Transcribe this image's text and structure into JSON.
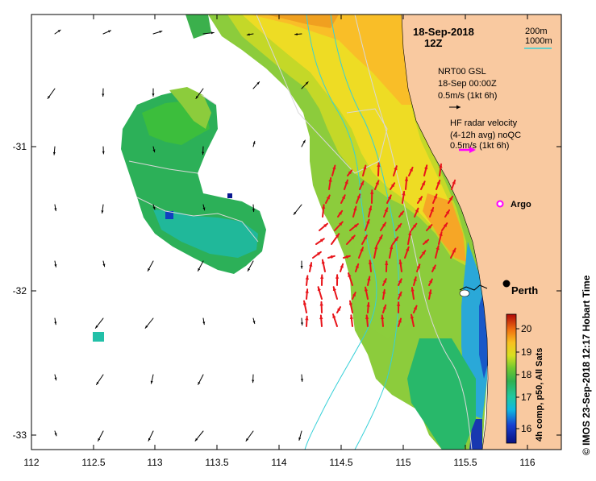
{
  "map": {
    "title_date": "18-Sep-2018",
    "title_time": "12Z",
    "depth_labels": [
      "200m",
      "1000m"
    ],
    "depth_colors": {
      "d200": "#cccccc",
      "d1000": "#36d0d8"
    },
    "gsl_title": "NRT00 GSL",
    "gsl_date": "18-Sep 00:00Z",
    "gsl_scale": "0.5m/s (1kt 6h)",
    "hf_title": "HF radar velocity",
    "hf_subtitle": "(4-12h avg) noQC",
    "hf_scale": "0.5m/s (1kt 6h)",
    "argo_label": "Argo",
    "city_label": "Perth",
    "side_label": "© IMOS 23-Sep-2018 12:17 Hobart Time",
    "colorbar_label": "4h comp, p50, All Sats",
    "colorbar_ticks": [
      "16",
      "17",
      "18",
      "19",
      "20"
    ],
    "x_ticks": [
      "112",
      "112.5",
      "113",
      "113.5",
      "114",
      "114.5",
      "115",
      "115.5",
      "116"
    ],
    "y_ticks": [
      "-31",
      "-32",
      "-33"
    ],
    "colors": {
      "land": "#f9c9a0",
      "gsl_arrow": "#000000",
      "hf_arrow": "#e8141a",
      "hf_scale_arrow": "#ff00ff",
      "argo": "#ff00ff"
    }
  }
}
